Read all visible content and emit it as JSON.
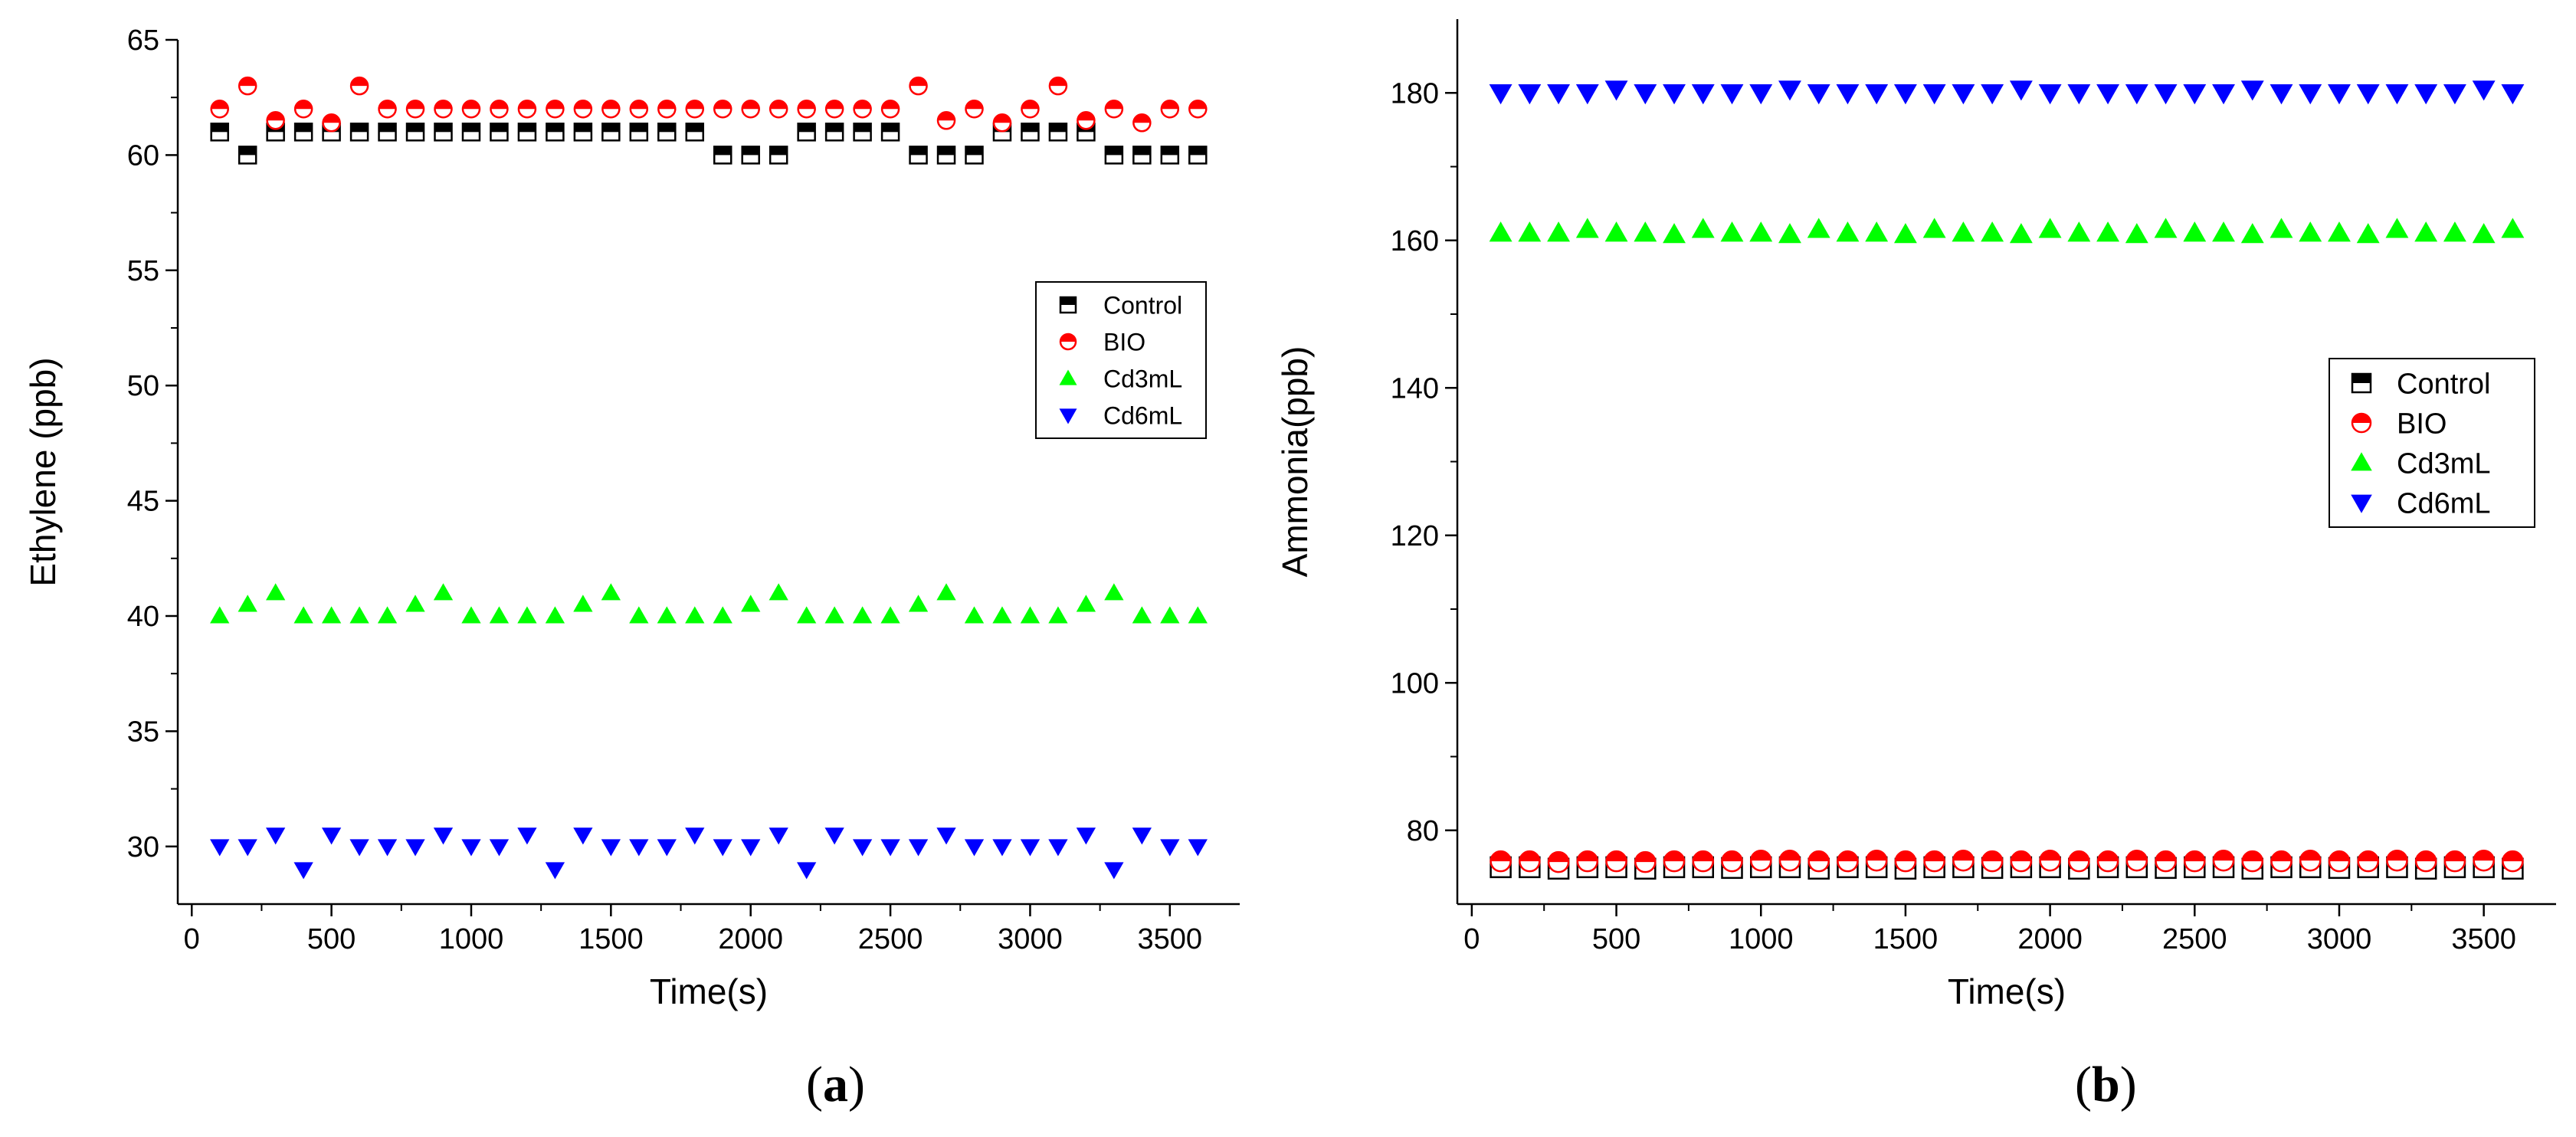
{
  "panel_labels": {
    "a": {
      "open": "(",
      "letter": "a",
      "close": ")"
    },
    "b": {
      "open": "(",
      "letter": "b",
      "close": ")"
    }
  },
  "chart_data": [
    {
      "type": "scatter",
      "title": "",
      "xlabel": "Time(s)",
      "ylabel": "Ethylene (ppb)",
      "xlim": [
        -50,
        3750
      ],
      "ylim": [
        27.5,
        65
      ],
      "xticks": [
        0,
        500,
        1000,
        1500,
        2000,
        2500,
        3000,
        3500
      ],
      "yticks": [
        30,
        35,
        40,
        45,
        50,
        55,
        60,
        65
      ],
      "legend_position": "right-middle",
      "x": [
        100,
        200,
        300,
        400,
        500,
        600,
        700,
        800,
        900,
        1000,
        1100,
        1200,
        1300,
        1400,
        1500,
        1600,
        1700,
        1800,
        1900,
        2000,
        2100,
        2200,
        2300,
        2400,
        2500,
        2600,
        2700,
        2800,
        2900,
        3000,
        3100,
        3200,
        3300,
        3400,
        3500,
        3600
      ],
      "series": [
        {
          "name": "Control",
          "marker": "half-square",
          "color": "#000000",
          "values": [
            61,
            60,
            61,
            61,
            61,
            61,
            61,
            61,
            61,
            61,
            61,
            61,
            61,
            61,
            61,
            61,
            61,
            61,
            60,
            60,
            60,
            61,
            61,
            61,
            61,
            60,
            60,
            60,
            61,
            61,
            61,
            61,
            60,
            60,
            60,
            60
          ]
        },
        {
          "name": "BIO",
          "marker": "half-circle",
          "color": "#ff0000",
          "values": [
            62,
            63,
            61.5,
            62,
            61.4,
            63,
            62,
            62,
            62,
            62,
            62,
            62,
            62,
            62,
            62,
            62,
            62,
            62,
            62,
            62,
            62,
            62,
            62,
            62,
            62,
            63,
            61.5,
            62,
            61.4,
            62,
            63,
            61.5,
            62,
            61.4,
            62,
            62
          ]
        },
        {
          "name": "Cd3mL",
          "marker": "triangle-up",
          "color": "#00ff00",
          "values": [
            40,
            40.5,
            41,
            40,
            40,
            40,
            40,
            40.5,
            41,
            40,
            40,
            40,
            40,
            40.5,
            41,
            40,
            40,
            40,
            40,
            40.5,
            41,
            40,
            40,
            40,
            40,
            40.5,
            41,
            40,
            40,
            40,
            40,
            40.5,
            41,
            40,
            40,
            40
          ]
        },
        {
          "name": "Cd6mL",
          "marker": "triangle-down",
          "color": "#0000ff",
          "values": [
            30,
            30,
            30.5,
            29,
            30.5,
            30,
            30,
            30,
            30.5,
            30,
            30,
            30.5,
            29,
            30.5,
            30,
            30,
            30,
            30.5,
            30,
            30,
            30.5,
            29,
            30.5,
            30,
            30,
            30,
            30.5,
            30,
            30,
            30,
            30,
            30.5,
            29,
            30.5,
            30,
            30
          ]
        }
      ]
    },
    {
      "type": "scatter",
      "title": "",
      "xlabel": "Time(s)",
      "ylabel": "Ammonia(ppb)",
      "xlim": [
        -50,
        3750
      ],
      "ylim": [
        70,
        190
      ],
      "xticks": [
        0,
        500,
        1000,
        1500,
        2000,
        2500,
        3000,
        3500
      ],
      "yticks": [
        80,
        100,
        120,
        140,
        160,
        180
      ],
      "legend_position": "right-middle",
      "x": [
        100,
        200,
        300,
        400,
        500,
        600,
        700,
        800,
        900,
        1000,
        1100,
        1200,
        1300,
        1400,
        1500,
        1600,
        1700,
        1800,
        1900,
        2000,
        2100,
        2200,
        2300,
        2400,
        2500,
        2600,
        2700,
        2800,
        2900,
        3000,
        3100,
        3200,
        3300,
        3400,
        3500,
        3600
      ],
      "series": [
        {
          "name": "Control",
          "marker": "half-square",
          "color": "#000000",
          "values": [
            75,
            75,
            74.8,
            75,
            75,
            74.8,
            75,
            75,
            74.9,
            75,
            75,
            74.8,
            75,
            75,
            74.8,
            75,
            75,
            74.9,
            75,
            75,
            74.8,
            75,
            75,
            74.9,
            75,
            75,
            74.8,
            75,
            75,
            74.9,
            75,
            75,
            74.8,
            75,
            75,
            74.8
          ]
        },
        {
          "name": "BIO",
          "marker": "half-circle",
          "color": "#ff0000",
          "values": [
            75.8,
            75.8,
            75.7,
            75.8,
            75.8,
            75.7,
            75.8,
            75.8,
            75.8,
            75.9,
            75.9,
            75.8,
            75.8,
            75.9,
            75.8,
            75.8,
            75.9,
            75.8,
            75.8,
            75.9,
            75.8,
            75.8,
            75.9,
            75.8,
            75.8,
            75.9,
            75.8,
            75.8,
            75.9,
            75.8,
            75.8,
            75.9,
            75.8,
            75.8,
            75.9,
            75.8
          ]
        },
        {
          "name": "Cd3mL",
          "marker": "triangle-up",
          "color": "#00ff00",
          "values": [
            161,
            161,
            161,
            161.5,
            161,
            161,
            160.8,
            161.5,
            161,
            161,
            160.8,
            161.5,
            161,
            161,
            160.8,
            161.5,
            161,
            161,
            160.8,
            161.5,
            161,
            161,
            160.8,
            161.5,
            161,
            161,
            160.8,
            161.5,
            161,
            161,
            160.8,
            161.5,
            161,
            161,
            160.8,
            161.5
          ]
        },
        {
          "name": "Cd6mL",
          "marker": "triangle-down",
          "color": "#0000ff",
          "values": [
            180,
            180,
            180,
            180,
            180.5,
            180,
            180,
            180,
            180,
            180,
            180.5,
            180,
            180,
            180,
            180,
            180,
            180,
            180,
            180.5,
            180,
            180,
            180,
            180,
            180,
            180,
            180,
            180.5,
            180,
            180,
            180,
            180,
            180,
            180,
            180,
            180.5,
            180
          ]
        }
      ]
    }
  ]
}
